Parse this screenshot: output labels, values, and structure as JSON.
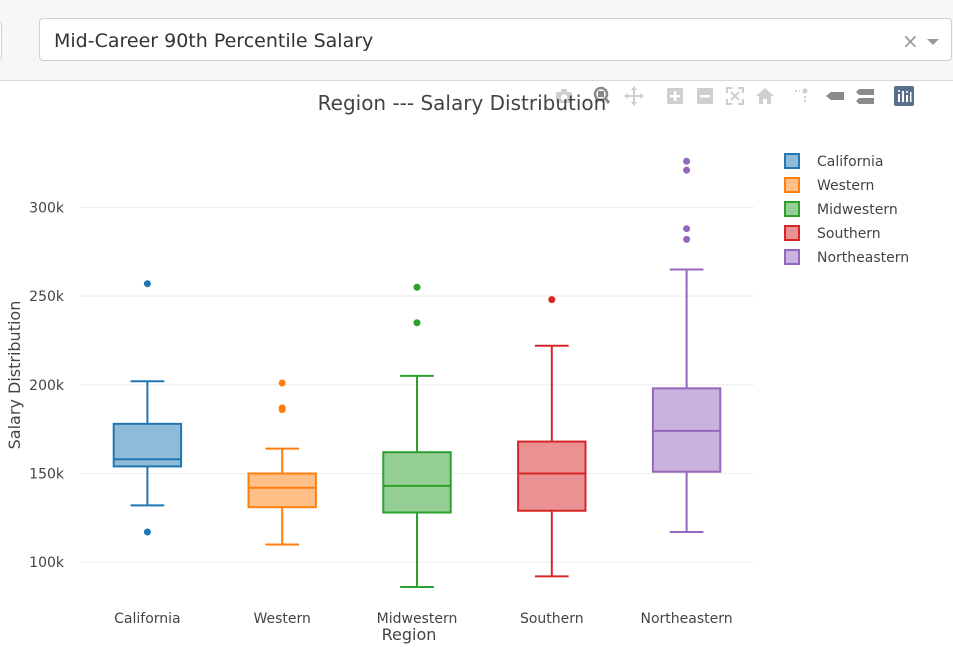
{
  "dropdown": {
    "selected": "Mid-Career 90th Percentile Salary",
    "clear_glyph": "×"
  },
  "modebar": {
    "buttons": [
      {
        "name": "camera-icon"
      },
      {
        "name": "zoom-icon"
      },
      {
        "name": "pan-icon"
      },
      {
        "name": "zoom-in-icon"
      },
      {
        "name": "zoom-out-icon"
      },
      {
        "name": "autoscale-icon"
      },
      {
        "name": "reset-axes-icon"
      },
      {
        "name": "spike-lines-icon"
      },
      {
        "name": "hover-closest-icon"
      },
      {
        "name": "hover-compare-icon"
      },
      {
        "name": "plotly-logo-icon"
      }
    ]
  },
  "chart_data": {
    "type": "box",
    "title": "Region --- Salary Distribution",
    "xlabel": "Region",
    "ylabel": "Salary Distribution",
    "ylim": [
      77000,
      338000
    ],
    "yticks": [
      100000,
      150000,
      200000,
      250000,
      300000
    ],
    "ytick_labels": [
      "100k",
      "150k",
      "200k",
      "250k",
      "300k"
    ],
    "grid": true,
    "legend_position": "top-right",
    "categories": [
      "California",
      "Western",
      "Midwestern",
      "Southern",
      "Northeastern"
    ],
    "series": [
      {
        "name": "California",
        "color": "#1f77b4",
        "fill": "#8fbbd9",
        "lower_fence": 132000,
        "q1": 154000,
        "median": 158000,
        "q3": 178000,
        "upper_fence": 202000,
        "outliers": [
          117000,
          257000
        ]
      },
      {
        "name": "Western",
        "color": "#ff7f0e",
        "fill": "#ffbf86",
        "lower_fence": 110000,
        "q1": 131000,
        "median": 142000,
        "q3": 150000,
        "upper_fence": 164000,
        "outliers": [
          186000,
          187000,
          201000
        ]
      },
      {
        "name": "Midwestern",
        "color": "#2ca02c",
        "fill": "#95cf95",
        "lower_fence": 86000,
        "q1": 128000,
        "median": 143000,
        "q3": 162000,
        "upper_fence": 205000,
        "outliers": [
          235000,
          255000
        ]
      },
      {
        "name": "Southern",
        "color": "#d62728",
        "fill": "#ea9293",
        "lower_fence": 92000,
        "q1": 129000,
        "median": 150000,
        "q3": 168000,
        "upper_fence": 222000,
        "outliers": [
          248000
        ]
      },
      {
        "name": "Northeastern",
        "color": "#9467bd",
        "fill": "#c9b3de",
        "lower_fence": 117000,
        "q1": 151000,
        "median": 174000,
        "q3": 198000,
        "upper_fence": 265000,
        "outliers": [
          282000,
          288000,
          321000,
          326000
        ]
      }
    ]
  }
}
